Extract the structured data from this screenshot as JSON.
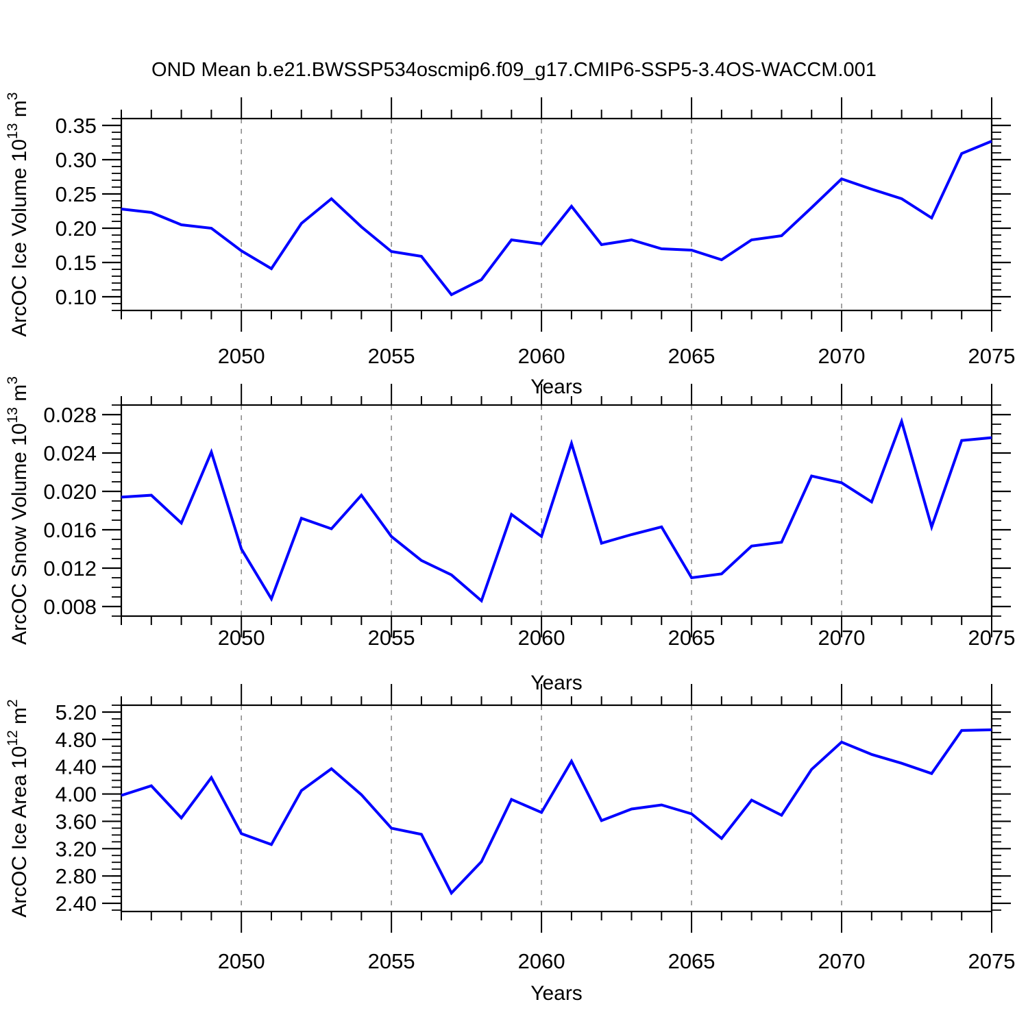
{
  "title": "OND Mean b.e21.BWSSP534oscmip6.f09_g17.CMIP6-SSP5-3.4OS-WACCM.001",
  "colors": {
    "line": "#0000ff",
    "axis": "#000000",
    "grid": "#8c8c8c",
    "text": "#000000"
  },
  "chart_data": [
    {
      "name": "ice-volume",
      "type": "line",
      "xlabel": "Years",
      "ylabel_segments": [
        {
          "t": "ArcOC Ice Volume 10"
        },
        {
          "t": "13",
          "sup": true
        },
        {
          "t": " m"
        },
        {
          "t": "3",
          "sup": true
        }
      ],
      "x": [
        2046,
        2047,
        2048,
        2049,
        2050,
        2051,
        2052,
        2053,
        2054,
        2055,
        2056,
        2057,
        2058,
        2059,
        2060,
        2061,
        2062,
        2063,
        2064,
        2065,
        2066,
        2067,
        2068,
        2069,
        2070,
        2071,
        2072,
        2073,
        2074,
        2075
      ],
      "values": [
        0.228,
        0.223,
        0.205,
        0.2,
        0.167,
        0.141,
        0.207,
        0.243,
        0.202,
        0.166,
        0.159,
        0.103,
        0.125,
        0.183,
        0.177,
        0.232,
        0.176,
        0.183,
        0.17,
        0.168,
        0.154,
        0.183,
        0.189,
        0.23,
        0.272,
        0.257,
        0.243,
        0.215,
        0.309,
        0.327
      ],
      "xlim": [
        2046,
        2075
      ],
      "ylim": [
        0.08,
        0.36
      ],
      "xticks_major": [
        2050,
        2055,
        2060,
        2065,
        2070,
        2075
      ],
      "xtick_labels": [
        "2050",
        "2055",
        "2060",
        "2065",
        "2070",
        "2075"
      ],
      "grid_x": [
        2050,
        2055,
        2060,
        2065,
        2070
      ],
      "yticks_major": [
        0.1,
        0.15,
        0.2,
        0.25,
        0.3,
        0.35
      ],
      "ytick_labels": [
        "0.10",
        "0.15",
        "0.20",
        "0.25",
        "0.30",
        "0.35"
      ],
      "ytick_minor_step": 0.01,
      "grid_style": "dashed-vertical"
    },
    {
      "name": "snow-volume",
      "type": "line",
      "xlabel": "Years",
      "ylabel_segments": [
        {
          "t": "ArcOC Snow Volume 10"
        },
        {
          "t": "13",
          "sup": true
        },
        {
          "t": " m"
        },
        {
          "t": "3",
          "sup": true
        }
      ],
      "x": [
        2046,
        2047,
        2048,
        2049,
        2050,
        2051,
        2052,
        2053,
        2054,
        2055,
        2056,
        2057,
        2058,
        2059,
        2060,
        2061,
        2062,
        2063,
        2064,
        2065,
        2066,
        2067,
        2068,
        2069,
        2070,
        2071,
        2072,
        2073,
        2074,
        2075
      ],
      "values": [
        0.0194,
        0.0196,
        0.0167,
        0.0241,
        0.014,
        0.0088,
        0.0172,
        0.0161,
        0.0196,
        0.0153,
        0.0128,
        0.0113,
        0.0086,
        0.0176,
        0.0153,
        0.025,
        0.0146,
        0.0155,
        0.0163,
        0.011,
        0.0114,
        0.0143,
        0.0147,
        0.0216,
        0.0209,
        0.0189,
        0.0273,
        0.0163,
        0.0253,
        0.0256
      ],
      "xlim": [
        2046,
        2075
      ],
      "ylim": [
        0.007,
        0.029
      ],
      "xticks_major": [
        2050,
        2055,
        2060,
        2065,
        2070,
        2075
      ],
      "xtick_labels": [
        "2050",
        "2055",
        "2060",
        "2065",
        "2070",
        "2075"
      ],
      "grid_x": [
        2050,
        2055,
        2060,
        2065,
        2070
      ],
      "yticks_major": [
        0.008,
        0.012,
        0.016,
        0.02,
        0.024,
        0.028
      ],
      "ytick_labels": [
        "0.008",
        "0.012",
        "0.016",
        "0.020",
        "0.024",
        "0.028"
      ],
      "ytick_minor_step": 0.001,
      "grid_style": "dashed-vertical"
    },
    {
      "name": "ice-area",
      "type": "line",
      "xlabel": "Years",
      "ylabel_segments": [
        {
          "t": "ArcOC Ice Area 10"
        },
        {
          "t": "12",
          "sup": true
        },
        {
          "t": " m"
        },
        {
          "t": "2",
          "sup": true
        }
      ],
      "x": [
        2046,
        2047,
        2048,
        2049,
        2050,
        2051,
        2052,
        2053,
        2054,
        2055,
        2056,
        2057,
        2058,
        2059,
        2060,
        2061,
        2062,
        2063,
        2064,
        2065,
        2066,
        2067,
        2068,
        2069,
        2070,
        2071,
        2072,
        2073,
        2074,
        2075
      ],
      "values": [
        3.98,
        4.12,
        3.65,
        4.24,
        3.42,
        3.26,
        4.05,
        4.37,
        3.99,
        3.5,
        3.41,
        2.55,
        3.01,
        3.92,
        3.73,
        4.48,
        3.61,
        3.78,
        3.84,
        3.71,
        3.35,
        3.91,
        3.69,
        4.36,
        4.76,
        4.58,
        4.45,
        4.3,
        4.93,
        4.94
      ],
      "xlim": [
        2046,
        2075
      ],
      "ylim": [
        2.28,
        5.3
      ],
      "xticks_major": [
        2050,
        2055,
        2060,
        2065,
        2070,
        2075
      ],
      "xtick_labels": [
        "2050",
        "2055",
        "2060",
        "2065",
        "2070",
        "2075"
      ],
      "grid_x": [
        2050,
        2055,
        2060,
        2065,
        2070
      ],
      "yticks_major": [
        2.4,
        2.8,
        3.2,
        3.6,
        4.0,
        4.4,
        4.8,
        5.2
      ],
      "ytick_labels": [
        "2.40",
        "2.80",
        "3.20",
        "3.60",
        "4.00",
        "4.40",
        "4.80",
        "5.20"
      ],
      "ytick_minor_step": 0.1,
      "grid_style": "dashed-vertical"
    }
  ]
}
